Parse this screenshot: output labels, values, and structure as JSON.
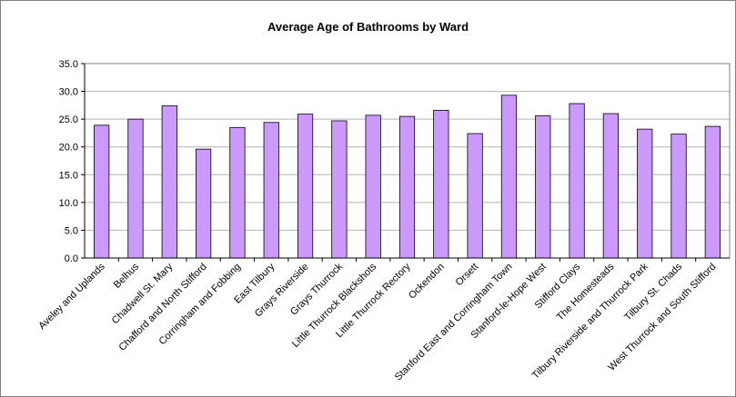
{
  "chart_data": {
    "type": "bar",
    "title": "Average Age of Bathrooms by Ward",
    "xlabel": "",
    "ylabel": "",
    "ylim": [
      0,
      35
    ],
    "yticks": [
      "0.0",
      "5.0",
      "10.0",
      "15.0",
      "20.0",
      "25.0",
      "30.0",
      "35.0"
    ],
    "grid": true,
    "legend": "none",
    "bar_color": "#CC99FF",
    "categories": [
      "Aveley and Uplands",
      "Belhus",
      "Chadwell St. Mary",
      "Chafford and North Stifford",
      "Corringham and Fobbing",
      "East Tilbury",
      "Grays Riverside",
      "Grays Thurrock",
      "Little Thurrock Blackshots",
      "Little Thurrock Rectory",
      "Ockendon",
      "Orsett",
      "Stanford East and Corringham Town",
      "Stanford-le-Hope West",
      "Stifford Clays",
      "The Homesteads",
      "Tilbury Riverside and Thurrock Park",
      "Tilbury St. Chads",
      "West Thurrock and South Stifford"
    ],
    "values": [
      23.9,
      25.0,
      27.4,
      19.6,
      23.5,
      24.4,
      25.9,
      24.7,
      25.7,
      25.5,
      26.6,
      22.4,
      29.3,
      25.6,
      27.8,
      26.0,
      23.2,
      22.3,
      23.7
    ]
  }
}
